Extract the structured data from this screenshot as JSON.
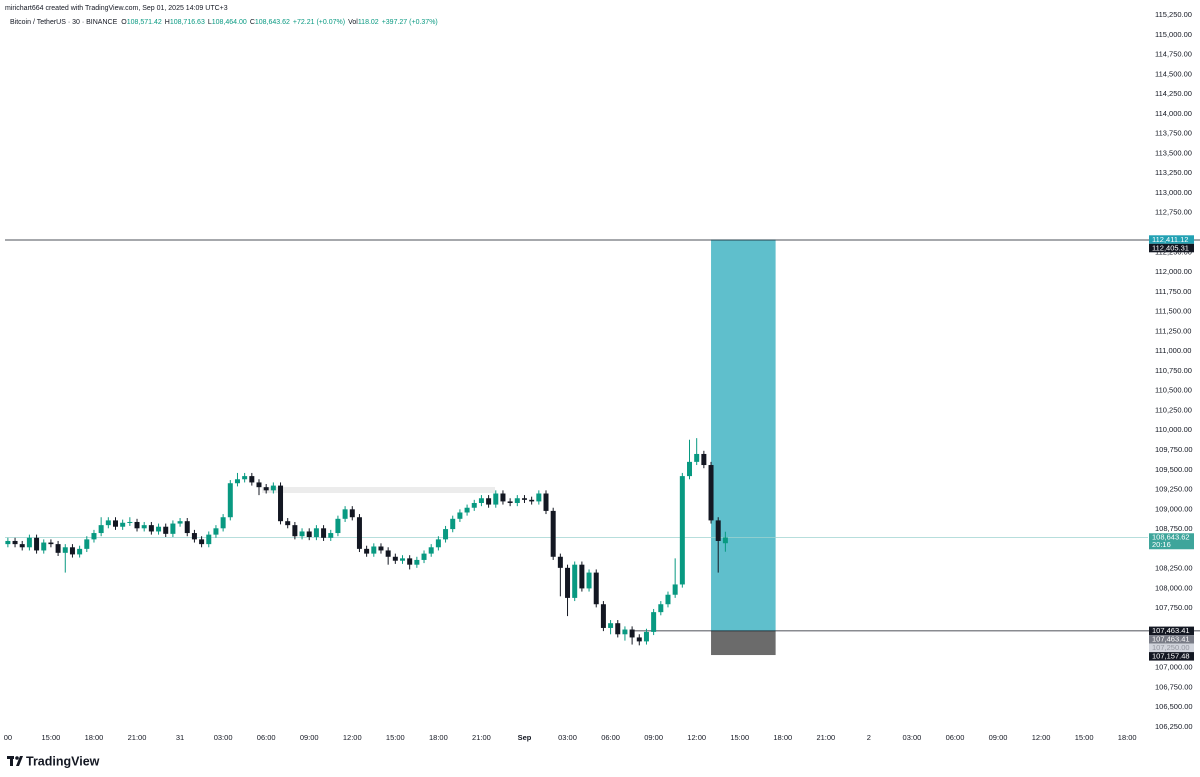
{
  "chart_data": {
    "type": "candlestick",
    "credit": "mirichart664 created with TradingView.com, Sep 01, 2025 14:09 UTC+3",
    "symbol": "Bitcoin / TetherUS · 30 · BINANCE",
    "legend": [
      {
        "key": "O",
        "text": "108,571.42"
      },
      {
        "key": "H",
        "text": "108,716.63"
      },
      {
        "key": "L",
        "text": "108,464.00"
      },
      {
        "key": "C",
        "text": "108,643.62"
      },
      {
        "key": "",
        "text": "+72.21 (+0.07%)"
      },
      {
        "key": "Vol",
        "text": "118.02"
      },
      {
        "key": "",
        "text": "+397.27 (+0.37%)"
      }
    ],
    "footer": "TradingView",
    "up_color": "#089981",
    "down_color": "#131722",
    "xlim": [
      -0.4,
      158.9
    ],
    "ylim": [
      106020,
      115440
    ],
    "xticks": [
      {
        "value": 0,
        "label": "00"
      },
      {
        "value": 6,
        "label": "15:00"
      },
      {
        "value": 12,
        "label": "18:00"
      },
      {
        "value": 18,
        "label": "21:00"
      },
      {
        "value": 24,
        "label": "31"
      },
      {
        "value": 30,
        "label": "03:00"
      },
      {
        "value": 36,
        "label": "06:00"
      },
      {
        "value": 42,
        "label": "09:00"
      },
      {
        "value": 48,
        "label": "12:00"
      },
      {
        "value": 54,
        "label": "15:00"
      },
      {
        "value": 60,
        "label": "18:00"
      },
      {
        "value": 66,
        "label": "21:00"
      },
      {
        "value": 72,
        "label": "Sep"
      },
      {
        "value": 78,
        "label": "03:00"
      },
      {
        "value": 84,
        "label": "06:00"
      },
      {
        "value": 90,
        "label": "09:00"
      },
      {
        "value": 96,
        "label": "12:00"
      },
      {
        "value": 102,
        "label": "15:00"
      },
      {
        "value": 108,
        "label": "18:00"
      },
      {
        "value": 114,
        "label": "21:00"
      },
      {
        "value": 120,
        "label": "2"
      },
      {
        "value": 126,
        "label": "03:00"
      },
      {
        "value": 132,
        "label": "06:00"
      },
      {
        "value": 138,
        "label": "09:00"
      },
      {
        "value": 144,
        "label": "12:00"
      },
      {
        "value": 150,
        "label": "15:00"
      },
      {
        "value": 156,
        "label": "18:00"
      }
    ],
    "yticks": [
      {
        "value": 106250,
        "label": "106,250.00"
      },
      {
        "value": 106500,
        "label": "106,500.00"
      },
      {
        "value": 106750,
        "label": "106,750.00"
      },
      {
        "value": 107000,
        "label": "107,000.00"
      },
      {
        "value": 107750,
        "label": "107,750.00"
      },
      {
        "value": 108000,
        "label": "108,000.00"
      },
      {
        "value": 108250,
        "label": "108,250.00"
      },
      {
        "value": 108750,
        "label": "108,750.00"
      },
      {
        "value": 109000,
        "label": "109,000.00"
      },
      {
        "value": 109250,
        "label": "109,250.00"
      },
      {
        "value": 109500,
        "label": "109,500.00"
      },
      {
        "value": 109750,
        "label": "109,750.00"
      },
      {
        "value": 110000,
        "label": "110,000.00"
      },
      {
        "value": 110250,
        "label": "110,250.00"
      },
      {
        "value": 110500,
        "label": "110,500.00"
      },
      {
        "value": 110750,
        "label": "110,750.00"
      },
      {
        "value": 111000,
        "label": "111,000.00"
      },
      {
        "value": 111250,
        "label": "111,250.00"
      },
      {
        "value": 111500,
        "label": "111,500.00"
      },
      {
        "value": 111750,
        "label": "111,750.00"
      },
      {
        "value": 112000,
        "label": "112,000.00"
      },
      {
        "value": 112250,
        "label": "112,250.00"
      },
      {
        "value": 112750,
        "label": "112,750.00"
      },
      {
        "value": 113000,
        "label": "113,000.00"
      },
      {
        "value": 113250,
        "label": "113,250.00"
      },
      {
        "value": 113500,
        "label": "113,500.00"
      },
      {
        "value": 113750,
        "label": "113,750.00"
      },
      {
        "value": 114000,
        "label": "114,000.00"
      },
      {
        "value": 114250,
        "label": "114,250.00"
      },
      {
        "value": 114500,
        "label": "114,500.00"
      },
      {
        "value": 114750,
        "label": "114,750.00"
      },
      {
        "value": 115000,
        "label": "115,000.00"
      },
      {
        "value": 115250,
        "label": "115,250.00"
      }
    ],
    "candles": [
      [
        108560,
        108640,
        108520,
        108600
      ],
      [
        108600,
        108640,
        108520,
        108560
      ],
      [
        108560,
        108600,
        108480,
        108520
      ],
      [
        108520,
        108680,
        108480,
        108640
      ],
      [
        108640,
        108680,
        108440,
        108480
      ],
      [
        108480,
        108620,
        108440,
        108580
      ],
      [
        108580,
        108620,
        108520,
        108560
      ],
      [
        108560,
        108600,
        108410,
        108450
      ],
      [
        108450,
        108560,
        108200,
        108520
      ],
      [
        108520,
        108560,
        108390,
        108430
      ],
      [
        108430,
        108540,
        108390,
        108500
      ],
      [
        108500,
        108660,
        108460,
        108620
      ],
      [
        108620,
        108740,
        108580,
        108700
      ],
      [
        108700,
        108900,
        108660,
        108800
      ],
      [
        108800,
        108900,
        108760,
        108860
      ],
      [
        108860,
        108900,
        108740,
        108780
      ],
      [
        108780,
        108870,
        108740,
        108830
      ],
      [
        108830,
        108900,
        108790,
        108840
      ],
      [
        108840,
        108880,
        108720,
        108760
      ],
      [
        108760,
        108840,
        108720,
        108800
      ],
      [
        108800,
        108840,
        108680,
        108720
      ],
      [
        108720,
        108820,
        108680,
        108780
      ],
      [
        108780,
        108820,
        108650,
        108690
      ],
      [
        108690,
        108860,
        108650,
        108820
      ],
      [
        108820,
        108890,
        108780,
        108850
      ],
      [
        108850,
        108890,
        108660,
        108700
      ],
      [
        108700,
        108740,
        108580,
        108620
      ],
      [
        108620,
        108660,
        108520,
        108560
      ],
      [
        108560,
        108720,
        108520,
        108680
      ],
      [
        108680,
        108800,
        108640,
        108760
      ],
      [
        108760,
        108940,
        108720,
        108900
      ],
      [
        108900,
        109370,
        108860,
        109330
      ],
      [
        109330,
        109460,
        109290,
        109380
      ],
      [
        109380,
        109460,
        109340,
        109420
      ],
      [
        109420,
        109460,
        109300,
        109340
      ],
      [
        109340,
        109380,
        109180,
        109280
      ],
      [
        109280,
        109320,
        109200,
        109240
      ],
      [
        109240,
        109340,
        109200,
        109300
      ],
      [
        109300,
        109340,
        108810,
        108850
      ],
      [
        108850,
        108890,
        108760,
        108800
      ],
      [
        108800,
        108840,
        108620,
        108660
      ],
      [
        108660,
        108760,
        108620,
        108720
      ],
      [
        108720,
        108760,
        108610,
        108650
      ],
      [
        108650,
        108800,
        108610,
        108760
      ],
      [
        108760,
        108800,
        108600,
        108640
      ],
      [
        108640,
        108740,
        108600,
        108700
      ],
      [
        108700,
        108920,
        108660,
        108880
      ],
      [
        108880,
        109040,
        108840,
        109000
      ],
      [
        109000,
        109040,
        108860,
        108900
      ],
      [
        108900,
        108940,
        108460,
        108500
      ],
      [
        108500,
        108540,
        108400,
        108440
      ],
      [
        108440,
        108570,
        108400,
        108530
      ],
      [
        108530,
        108570,
        108440,
        108480
      ],
      [
        108480,
        108520,
        108300,
        108400
      ],
      [
        108400,
        108440,
        108310,
        108350
      ],
      [
        108350,
        108420,
        108310,
        108380
      ],
      [
        108380,
        108420,
        108240,
        108300
      ],
      [
        108300,
        108400,
        108260,
        108360
      ],
      [
        108360,
        108480,
        108320,
        108440
      ],
      [
        108440,
        108560,
        108400,
        108520
      ],
      [
        108520,
        108660,
        108480,
        108620
      ],
      [
        108620,
        108790,
        108580,
        108750
      ],
      [
        108750,
        108920,
        108710,
        108880
      ],
      [
        108880,
        109000,
        108840,
        108960
      ],
      [
        108960,
        109060,
        108920,
        109020
      ],
      [
        109020,
        109120,
        108980,
        109080
      ],
      [
        109080,
        109180,
        109040,
        109140
      ],
      [
        109140,
        109180,
        109020,
        109060
      ],
      [
        109060,
        109240,
        109020,
        109200
      ],
      [
        109200,
        109240,
        109060,
        109100
      ],
      [
        109100,
        109140,
        109040,
        109080
      ],
      [
        109080,
        109180,
        109040,
        109140
      ],
      [
        109140,
        109180,
        109080,
        109120
      ],
      [
        109120,
        109160,
        109060,
        109100
      ],
      [
        109100,
        109240,
        109060,
        109200
      ],
      [
        109200,
        109240,
        108940,
        108980
      ],
      [
        108980,
        109020,
        108360,
        108400
      ],
      [
        108400,
        108440,
        107900,
        108260
      ],
      [
        108260,
        108300,
        107650,
        107880
      ],
      [
        107880,
        108340,
        107840,
        108300
      ],
      [
        108300,
        108340,
        107960,
        108000
      ],
      [
        108000,
        108240,
        107960,
        108200
      ],
      [
        108200,
        108240,
        107760,
        107800
      ],
      [
        107800,
        107840,
        107460,
        107500
      ],
      [
        107500,
        107600,
        107420,
        107560
      ],
      [
        107560,
        107600,
        107380,
        107420
      ],
      [
        107420,
        107520,
        107340,
        107480
      ],
      [
        107480,
        107520,
        107290,
        107380
      ],
      [
        107380,
        107420,
        107280,
        107330
      ],
      [
        107330,
        107490,
        107290,
        107450
      ],
      [
        107450,
        107740,
        107410,
        107700
      ],
      [
        107700,
        107840,
        107660,
        107800
      ],
      [
        107800,
        107960,
        107760,
        107920
      ],
      [
        107920,
        108380,
        107880,
        108050
      ],
      [
        108050,
        109460,
        108010,
        109420
      ],
      [
        109420,
        109880,
        109380,
        109600
      ],
      [
        109600,
        109900,
        109560,
        109700
      ],
      [
        109700,
        109740,
        109520,
        109560
      ],
      [
        109560,
        109600,
        108820,
        108860
      ],
      [
        108860,
        108900,
        108200,
        108600
      ],
      [
        108571.42,
        108716.63,
        108464.0,
        108643.62
      ]
    ],
    "position": {
      "entry": 107463.41,
      "target": 112411.12,
      "stop": 107157.48,
      "x": [
        98,
        107
      ],
      "profit_color": "#5fbfcc",
      "loss_color": "#6b6b6b"
    },
    "hlines": [
      {
        "value": 112405.31,
        "from": -0.4
      },
      {
        "value": 107463.41,
        "from": 87
      }
    ],
    "price_labels": [
      {
        "value": 112411.12,
        "label": "112,411.12",
        "color": "#22a1b3"
      },
      {
        "value": 112405.31,
        "label": "112,405.31",
        "color": "#131722"
      },
      {
        "value": 108643.62,
        "label": "108,643.62",
        "color": "#3ea59b",
        "countdown": "20:16"
      },
      {
        "value": 107463.41,
        "label": "107,463.41",
        "color": "#131722"
      },
      {
        "value": 107463.41,
        "label": "107,463.41",
        "color": "#787b86"
      },
      {
        "value": 107250,
        "label": "107,250.00",
        "color": "#d1d4dc"
      },
      {
        "value": 107157.48,
        "label": "107,157.48",
        "color": "#131722"
      }
    ]
  }
}
